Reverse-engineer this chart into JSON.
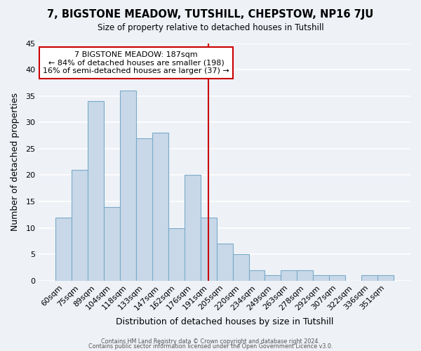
{
  "title_line1": "7, BIGSTONE MEADOW, TUTSHILL, CHEPSTOW, NP16 7JU",
  "title_line2": "Size of property relative to detached houses in Tutshill",
  "xlabel": "Distribution of detached houses by size in Tutshill",
  "ylabel": "Number of detached properties",
  "bar_labels": [
    "60sqm",
    "75sqm",
    "89sqm",
    "104sqm",
    "118sqm",
    "133sqm",
    "147sqm",
    "162sqm",
    "176sqm",
    "191sqm",
    "205sqm",
    "220sqm",
    "234sqm",
    "249sqm",
    "263sqm",
    "278sqm",
    "292sqm",
    "307sqm",
    "322sqm",
    "336sqm",
    "351sqm"
  ],
  "bar_heights": [
    12,
    21,
    34,
    14,
    36,
    27,
    28,
    10,
    20,
    12,
    7,
    5,
    2,
    1,
    2,
    2,
    1,
    1,
    0,
    1,
    1
  ],
  "bar_color": "#c8d8e8",
  "bar_edge_color": "#7aaac8",
  "vline_x": 9.0,
  "vline_color": "#cc0000",
  "annotation_title": "7 BIGSTONE MEADOW: 187sqm",
  "annotation_line1": "← 84% of detached houses are smaller (198)",
  "annotation_line2": "16% of semi-detached houses are larger (37) →",
  "annotation_box_color": "#ffffff",
  "annotation_box_edge": "#cc0000",
  "ylim": [
    0,
    45
  ],
  "yticks": [
    0,
    5,
    10,
    15,
    20,
    25,
    30,
    35,
    40,
    45
  ],
  "footnote1": "Contains HM Land Registry data © Crown copyright and database right 2024.",
  "footnote2": "Contains public sector information licensed under the Open Government Licence v3.0.",
  "background_color": "#eef2f7"
}
